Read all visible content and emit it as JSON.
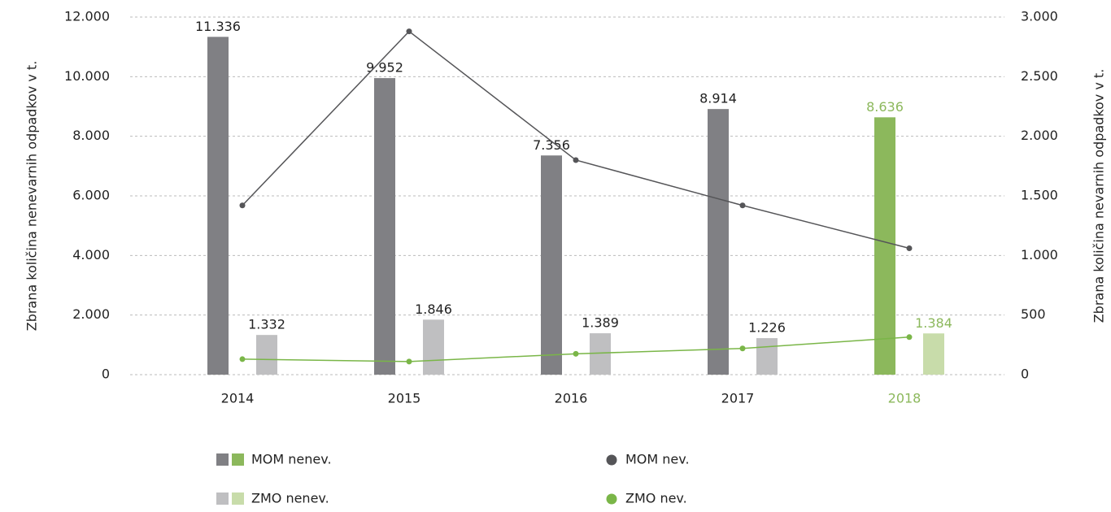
{
  "chart_data": {
    "type": "bar",
    "y_label": "Zbrana količina nenevarnih odpadkov  v t.",
    "y2_label": "Zbrana količina nevarnih odpadkov v t.",
    "categories": [
      "2014",
      "2015",
      "2016",
      "2017",
      "2018"
    ],
    "highlight_index": 4,
    "highlight_color": "#8cb85c",
    "series": [
      {
        "name": "MOM nenev.",
        "type": "bar",
        "color": "#808084",
        "highlight_color": "#8cb85c",
        "values": [
          11336,
          9952,
          7356,
          8914,
          8636
        ],
        "value_labels": [
          "11.336",
          "9.952",
          "7.356",
          "8.914",
          "8.636"
        ]
      },
      {
        "name": "ZMO nenev.",
        "type": "bar",
        "color": "#bfbfc1",
        "highlight_color": "#c8dcaa",
        "values": [
          1332,
          1846,
          1389,
          1226,
          1384
        ],
        "value_labels": [
          "1.332",
          "1.846",
          "1.389",
          "1.226",
          "1.384"
        ]
      },
      {
        "name": "MOM nev.",
        "type": "line",
        "axis": "y2",
        "color": "#555558",
        "values": [
          1420,
          2880,
          1800,
          1420,
          1060
        ]
      },
      {
        "name": "ZMO nev.",
        "type": "line",
        "axis": "y2",
        "color": "#7ab648",
        "values": [
          130,
          110,
          175,
          220,
          315
        ]
      }
    ],
    "ylim": [
      0,
      12000
    ],
    "yticks": [
      0,
      {
        "value": 2000,
        "label": "2.000"
      },
      {
        "value": 4000,
        "label": "4.000"
      },
      {
        "value": 6000,
        "label": "6.000"
      },
      {
        "value": 8000,
        "label": "8.000"
      },
      {
        "value": 10000,
        "label": "10.000"
      },
      {
        "value": 12000,
        "label": "12.000"
      }
    ],
    "y2lim": [
      0,
      3000
    ],
    "y2ticks": [
      0,
      500,
      {
        "value": 1000,
        "label": "1.000"
      },
      {
        "value": 1500,
        "label": "1.500"
      },
      {
        "value": 2000,
        "label": "2.000"
      },
      {
        "value": 2500,
        "label": "2.500"
      },
      {
        "value": 3000,
        "label": "3.000"
      }
    ],
    "grid": true
  }
}
